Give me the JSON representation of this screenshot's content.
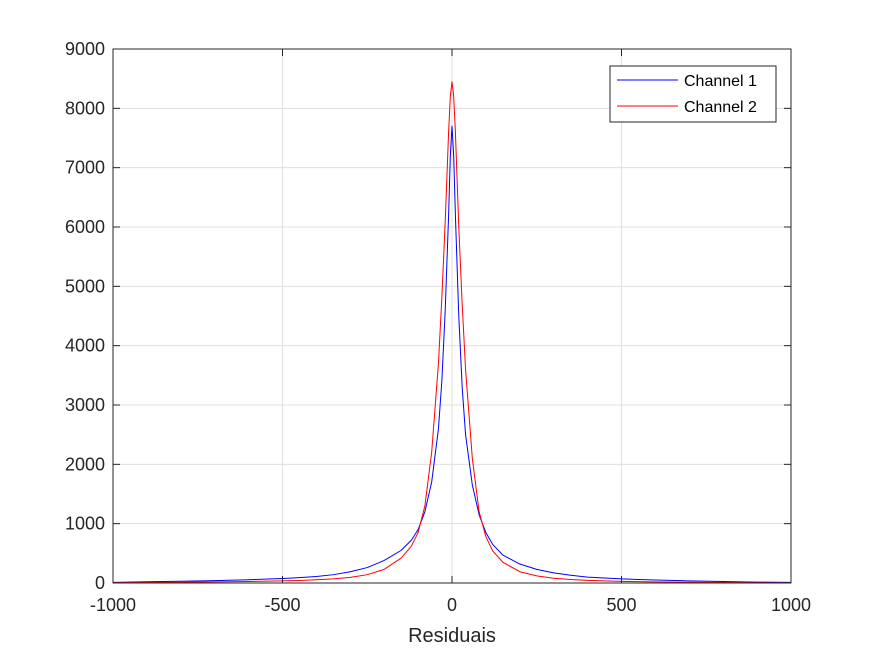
{
  "chart_data": {
    "type": "line",
    "title": "",
    "xlabel": "Residuais",
    "ylabel": "",
    "xlim": [
      -1000,
      1000
    ],
    "ylim": [
      0,
      9000
    ],
    "xticks": [
      -1000,
      -500,
      0,
      500,
      1000
    ],
    "yticks": [
      0,
      1000,
      2000,
      3000,
      4000,
      5000,
      6000,
      7000,
      8000,
      9000
    ],
    "xtick_labels": [
      "-1000",
      "-500",
      "0",
      "500",
      "1000"
    ],
    "ytick_labels": [
      "0",
      "1000",
      "2000",
      "3000",
      "4000",
      "5000",
      "6000",
      "7000",
      "8000",
      "9000"
    ],
    "grid": true,
    "legend_position": "top-right",
    "series": [
      {
        "name": "Channel 1",
        "color": "#0000ff",
        "x": [
          -1000,
          -900,
          -800,
          -700,
          -600,
          -500,
          -450,
          -400,
          -350,
          -300,
          -250,
          -200,
          -150,
          -120,
          -100,
          -80,
          -60,
          -40,
          -30,
          -20,
          -10,
          -5,
          0,
          5,
          10,
          20,
          30,
          40,
          60,
          80,
          100,
          120,
          150,
          200,
          250,
          300,
          350,
          400,
          450,
          500,
          600,
          700,
          800,
          900,
          1000
        ],
        "y": [
          10,
          20,
          30,
          40,
          55,
          75,
          90,
          110,
          140,
          190,
          260,
          380,
          550,
          720,
          900,
          1200,
          1700,
          2600,
          3400,
          4600,
          6200,
          7200,
          7700,
          7200,
          6200,
          4500,
          3300,
          2500,
          1650,
          1150,
          850,
          650,
          470,
          320,
          230,
          170,
          130,
          100,
          85,
          70,
          50,
          35,
          25,
          15,
          10
        ]
      },
      {
        "name": "Channel 2",
        "color": "#ff0000",
        "x": [
          -1000,
          -900,
          -800,
          -700,
          -600,
          -500,
          -450,
          -400,
          -350,
          -300,
          -250,
          -200,
          -150,
          -120,
          -100,
          -80,
          -60,
          -40,
          -30,
          -20,
          -10,
          -5,
          0,
          5,
          10,
          20,
          30,
          40,
          60,
          80,
          100,
          120,
          150,
          200,
          250,
          300,
          350,
          400,
          450,
          500,
          600,
          700,
          800,
          900,
          1000
        ],
        "y": [
          5,
          8,
          12,
          18,
          25,
          35,
          42,
          55,
          70,
          95,
          140,
          230,
          420,
          620,
          850,
          1300,
          2200,
          3700,
          4800,
          6100,
          7600,
          8200,
          8450,
          8200,
          7600,
          6000,
          4700,
          3600,
          2100,
          1200,
          780,
          540,
          350,
          190,
          120,
          80,
          60,
          45,
          35,
          28,
          18,
          12,
          8,
          5,
          3
        ]
      }
    ]
  }
}
